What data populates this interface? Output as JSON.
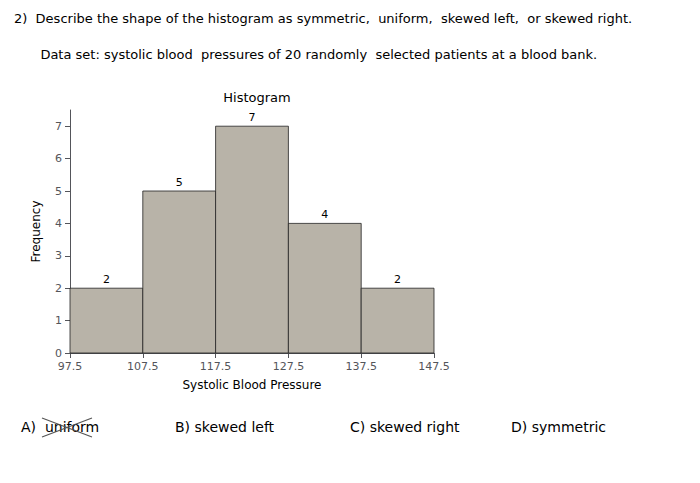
{
  "chart_data": {
    "type": "histogram",
    "title": "Histogram",
    "xlabel": "Systolic Blood Pressure",
    "ylabel": "Frequency",
    "bins": [
      97.5,
      107.5,
      117.5,
      127.5,
      137.5,
      147.5
    ],
    "values": [
      2,
      5,
      7,
      4,
      2
    ],
    "color": "#b8b3a8",
    "xlim": [
      97.5,
      147.5
    ],
    "xticks": [
      97.5,
      107.5,
      117.5,
      127.5,
      137.5,
      147.5
    ],
    "ylim": [
      0,
      7.5
    ],
    "yticks": [
      0,
      1,
      2,
      3,
      4,
      5,
      6,
      7
    ],
    "grid": false,
    "data_labels": true,
    "annotations": [
      "2)  Describe the shape of the histogram as symmetric,  uniform,  skewed left,  or skewed right.",
      "   Data set: systolic blood  pressures of 20 randomly  selected patients at a blood bank.",
      "A)  uniform",
      "B) skewed left",
      "C) skewed right",
      "D) symmetric"
    ]
  }
}
